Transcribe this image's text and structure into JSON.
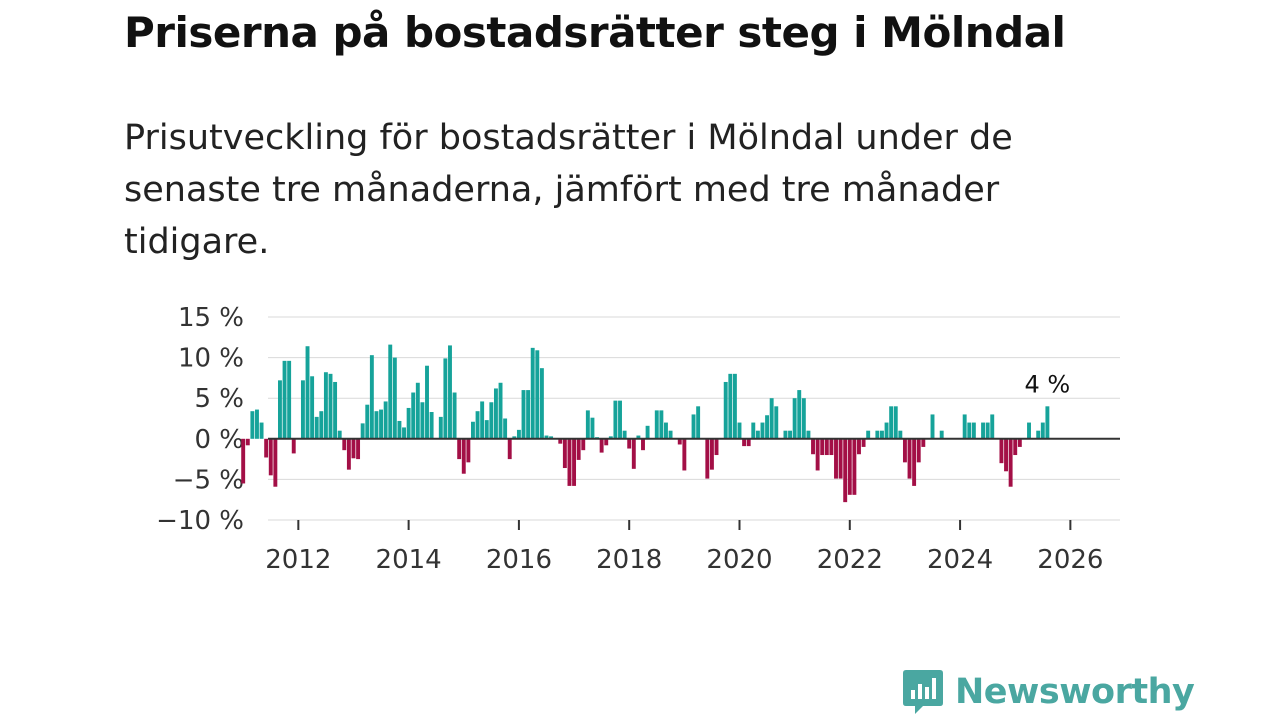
{
  "title": "Priserna på bostadsrätter steg i Mölndal",
  "subtitle": "Prisutveckling för bostadsrätter i Mölndal under de senaste tre månaderna, jämfört med tre månader tidigare.",
  "brand": {
    "name": "Newsworthy",
    "icon": "newsworthy-logo-icon",
    "color": "#4aa7a1"
  },
  "colors": {
    "positive": "#16a39a",
    "negative": "#a30f46",
    "grid": "#d9d9d9",
    "zero_line": "#333333"
  },
  "chart_data": {
    "type": "bar",
    "title": "Priserna på bostadsrätter steg i Mölndal",
    "xlabel": "",
    "ylabel": "",
    "ylim": [
      -10,
      15
    ],
    "y_ticks": [
      {
        "value": 15,
        "label": "15 %"
      },
      {
        "value": 10,
        "label": "10 %"
      },
      {
        "value": 5,
        "label": "5 %"
      },
      {
        "value": 0,
        "label": "0 %"
      },
      {
        "value": -5,
        "label": "−5 %"
      },
      {
        "value": -10,
        "label": "−10 %"
      }
    ],
    "x_ticks": [
      "2012",
      "2014",
      "2016",
      "2018",
      "2020",
      "2022",
      "2024",
      "2026"
    ],
    "x_start": "2011-01",
    "x_range": [
      2011.45,
      2026.9
    ],
    "last_value_label": "4 %",
    "monthly_values": [
      -5.5,
      -0.8,
      3.4,
      3.6,
      2.0,
      -2.3,
      -4.5,
      -5.9,
      7.2,
      9.6,
      9.6,
      -1.8,
      0.1,
      7.2,
      11.4,
      7.7,
      2.7,
      3.4,
      8.2,
      8.0,
      7.0,
      1.0,
      -1.4,
      -3.8,
      -2.4,
      -2.5,
      1.9,
      4.2,
      10.3,
      3.4,
      3.6,
      4.6,
      11.6,
      10.0,
      2.2,
      1.4,
      3.8,
      5.7,
      6.9,
      4.5,
      9.0,
      3.3,
      0.1,
      2.7,
      9.9,
      11.5,
      5.7,
      -2.5,
      -4.3,
      -2.9,
      2.1,
      3.4,
      4.6,
      2.3,
      4.5,
      6.2,
      6.9,
      2.5,
      -2.5,
      0.3,
      1.1,
      6.0,
      6.0,
      11.2,
      10.9,
      8.7,
      0.4,
      0.3,
      0.0,
      -0.6,
      -3.6,
      -5.8,
      -5.8,
      -2.6,
      -1.4,
      3.5,
      2.6,
      0.2,
      -1.7,
      -0.8,
      0.3,
      4.7,
      4.7,
      1.0,
      -1.2,
      -3.7,
      0.4,
      -1.4,
      1.6,
      0.1,
      3.5,
      3.5,
      2.0,
      1.0,
      0.1,
      -0.7,
      -3.9,
      0.1,
      3.0,
      4.0,
      0.1,
      -4.9,
      -3.8,
      -2.0,
      0.1,
      7.0,
      8.0,
      8.0,
      2.0,
      -0.9,
      -0.9,
      2.0,
      1.0,
      2.0,
      2.9,
      5.0,
      4.0,
      0.1,
      1.0,
      1.0,
      5.0,
      6.0,
      5.0,
      1.0,
      -1.9,
      -3.9,
      -2.0,
      -2.0,
      -2.0,
      -4.9,
      -4.9,
      -7.8,
      -6.9,
      -6.9,
      -1.9,
      -1.0,
      1.0,
      0.1,
      1.0,
      1.0,
      2.0,
      4.0,
      4.0,
      1.0,
      -2.9,
      -4.9,
      -5.8,
      -2.9,
      -1.0,
      0.0,
      3.0,
      0.1,
      1.0,
      0.0,
      0.0,
      0.0,
      0.1,
      3.0,
      2.0,
      2.0,
      0.1,
      2.0,
      2.0,
      3.0,
      0.1,
      -3.0,
      -4.0,
      -5.9,
      -2.0,
      -1.0,
      0.1,
      2.0,
      0.1,
      1.0,
      2.0,
      4.0
    ]
  }
}
